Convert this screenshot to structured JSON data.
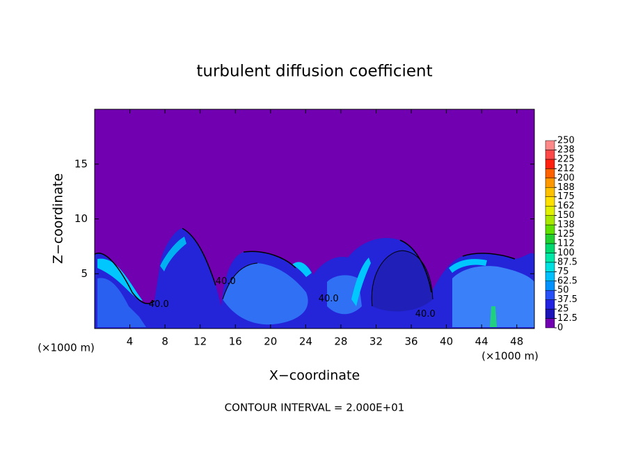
{
  "chart_data": {
    "type": "contour",
    "title": "turbulent diffusion coefficient",
    "xlabel": "X−coordinate",
    "ylabel": "Z−coordinate",
    "x_unit": "(×1000 m)",
    "xlim": [
      0,
      50
    ],
    "xticks": [
      4,
      8,
      12,
      16,
      20,
      24,
      28,
      32,
      36,
      40,
      44,
      48
    ],
    "ylim": [
      0,
      20
    ],
    "yticks": [
      5,
      10,
      15
    ],
    "colorbar": {
      "ticks": [
        0,
        12.5,
        25,
        37.5,
        50,
        62.5,
        75,
        87.5,
        100,
        {
          "value": 112.5,
          "label": "112"
        },
        125,
        {
          "value": 137.5,
          "label": "138"
        },
        150,
        {
          "value": 162.5,
          "label": "162"
        },
        175,
        {
          "value": 187.5,
          "label": "188"
        },
        200,
        {
          "value": 212.5,
          "label": "212"
        },
        225,
        {
          "value": 237.5,
          "label": "238"
        },
        250
      ],
      "colors": [
        "#7000b0",
        "#1c14b8",
        "#2222e0",
        "#2850f8",
        "#0090ff",
        "#00c0ff",
        "#00e0e0",
        "#00e8a8",
        "#00d870",
        "#20d030",
        "#60e000",
        "#a8e800",
        "#e0f000",
        "#ffe000",
        "#ffc000",
        "#ff9800",
        "#ff6000",
        "#ff2010",
        "#ff4848",
        "#ff8888"
      ]
    },
    "contour_labels": [
      {
        "text": "40.0",
        "x": 14.9,
        "z": 4.3
      },
      {
        "text": "40.0",
        "x": 7.3,
        "z": 2.2
      },
      {
        "text": "40.0",
        "x": 26.6,
        "z": 2.7
      },
      {
        "text": "40.0",
        "x": 37.6,
        "z": 1.3
      }
    ],
    "footer": "CONTOUR INTERVAL = 2.000E+01"
  }
}
